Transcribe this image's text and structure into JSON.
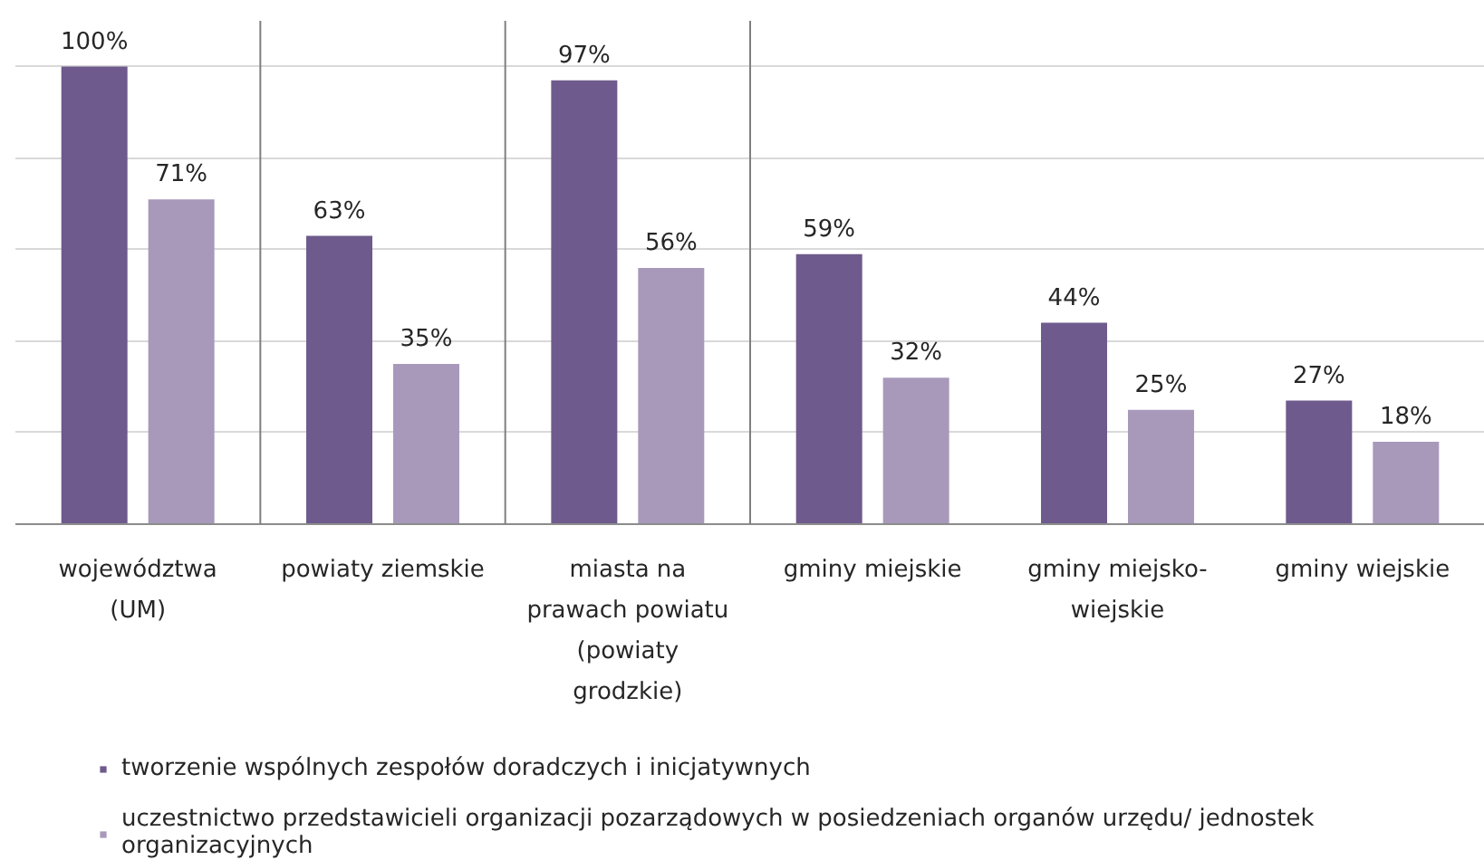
{
  "chart_data": {
    "type": "bar",
    "categories": [
      "województwa (UM)",
      "powiaty ziemskie",
      "miasta na prawach powiatu (powiaty grodzkie)",
      "gminy miejskie",
      "gminy miejsko-wiejskie",
      "gminy wiejskie"
    ],
    "series": [
      {
        "name": "tworzenie wspólnych zespołów doradczych i inicjatywnych",
        "color": "#6e5a8c",
        "values": [
          100,
          63,
          97,
          59,
          44,
          27
        ],
        "value_labels": [
          "100%",
          "63%",
          "97%",
          "59%",
          "44%",
          "27%"
        ]
      },
      {
        "name": "uczestnictwo przedstawicieli organizacji pozarządowych w posiedzeniach organów urzędu/ jednostek organizacyjnych",
        "color": "#a899bb",
        "values": [
          71,
          35,
          56,
          32,
          25,
          18
        ],
        "value_labels": [
          "71%",
          "35%",
          "56%",
          "32%",
          "25%",
          "18%"
        ]
      }
    ],
    "ylim": [
      0,
      110
    ],
    "yticks": [
      {
        "value": 0,
        "label": null
      },
      {
        "value": 20,
        "label": null
      },
      {
        "value": 40,
        "label": null
      },
      {
        "value": 60,
        "label": null
      },
      {
        "value": 80,
        "label": null
      },
      {
        "value": 100,
        "label": null
      }
    ],
    "tick_labels": "x",
    "grid": "y",
    "legend": "bottom"
  }
}
